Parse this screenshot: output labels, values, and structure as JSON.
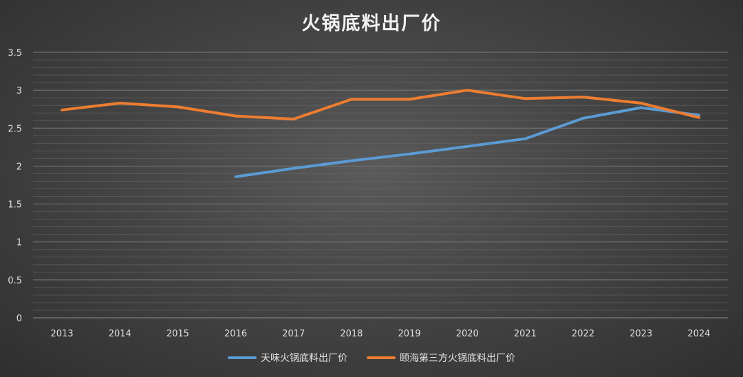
{
  "chart_data": {
    "type": "line",
    "title": "火锅底料出厂价",
    "xlabel": "",
    "ylabel": "",
    "categories": [
      "2013",
      "2014",
      "2015",
      "2016",
      "2017",
      "2018",
      "2019",
      "2020",
      "2021",
      "2022",
      "2023",
      "2024"
    ],
    "ylim": [
      0,
      3.5
    ],
    "y_ticks": [
      "0",
      "0.5",
      "1",
      "1.5",
      "2",
      "2.5",
      "3",
      "3.5"
    ],
    "grid": true,
    "legend_position": "bottom",
    "series": [
      {
        "name": "天味火锅底料出厂价",
        "color": "#5b9bd5",
        "values": [
          null,
          null,
          null,
          1.86,
          1.97,
          2.07,
          2.16,
          2.26,
          2.36,
          2.63,
          2.77,
          2.67
        ]
      },
      {
        "name": "颐海第三方火锅底料出厂价",
        "color": "#ed7d31",
        "values": [
          2.74,
          2.83,
          2.78,
          2.66,
          2.62,
          2.88,
          2.88,
          3.0,
          2.89,
          2.91,
          2.83,
          2.64
        ]
      }
    ]
  }
}
